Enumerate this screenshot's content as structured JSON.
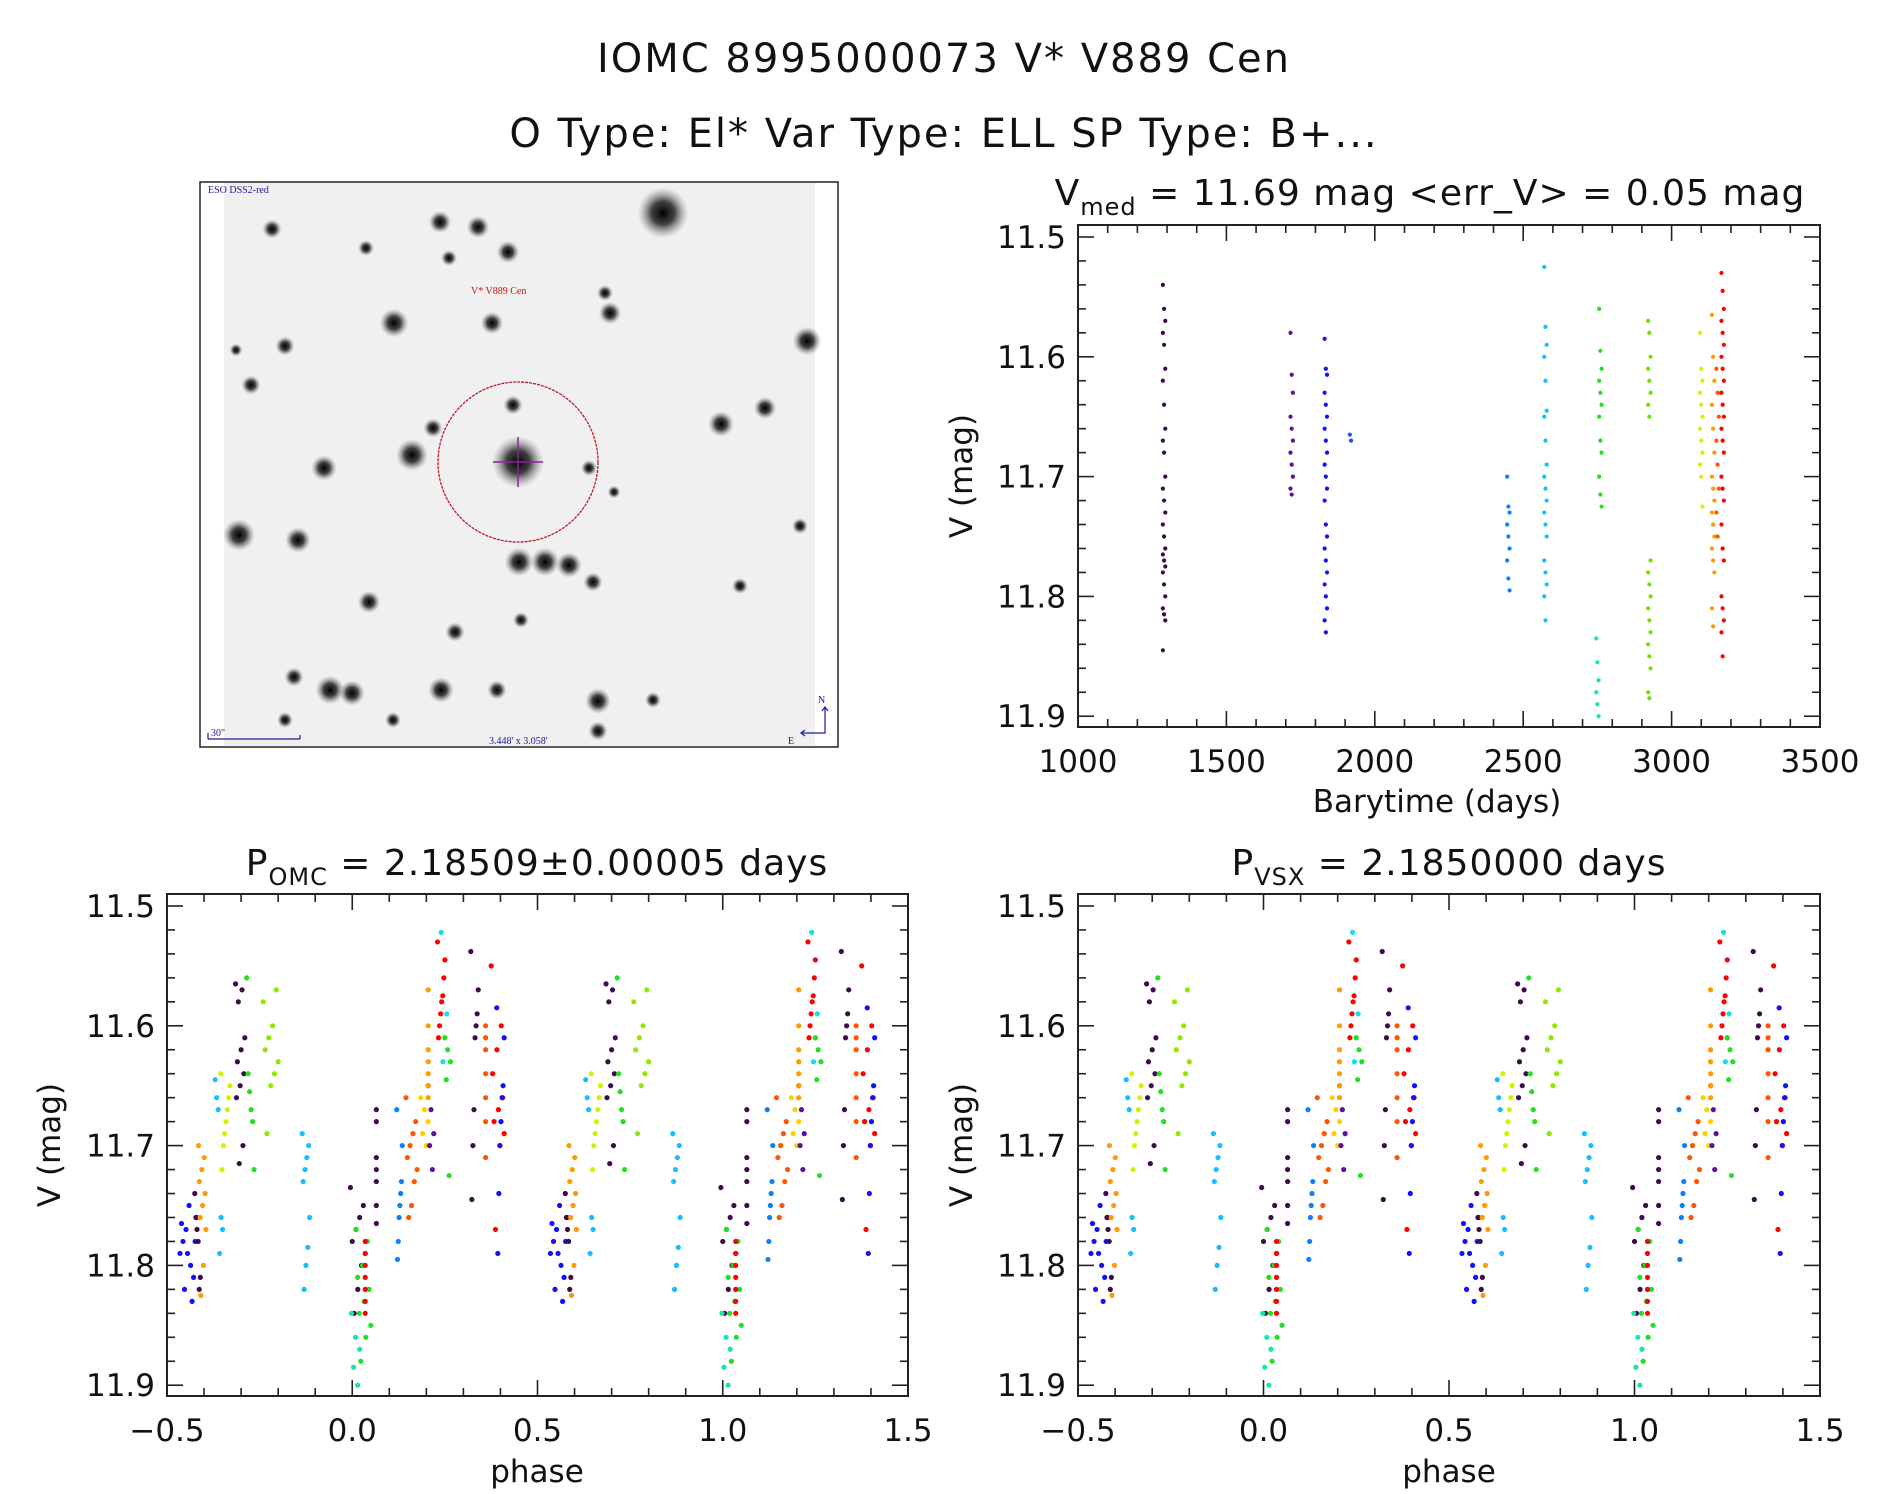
{
  "header": {
    "title_line1": "IOMC 8995000073    V* V889 Cen",
    "title_line2": "O Type: El*  Var Type: ELL  SP Type: B+..."
  },
  "finder_image": {
    "survey_label": "ESO DSS2-red",
    "target_label": "V* V889 Cen",
    "scale_label": "30\"",
    "fov_label": "3.448' x 3.058'",
    "north_label": "N",
    "east_label": "E",
    "colors": {
      "circle": "#c0182a",
      "cross": "#9020a0",
      "label": "#cc1010",
      "annot": "#1a1aa0"
    }
  },
  "chart_data": [
    {
      "id": "lightcurve",
      "type": "scatter",
      "title_main": "V",
      "title_sub": "med",
      "title_rest": " = 11.69 mag <err_V> = 0.05 mag",
      "xlabel": "Barytime (days)",
      "ylabel": "V (mag)",
      "xlim": [
        1000,
        3500
      ],
      "ylim": [
        11.909,
        11.49
      ],
      "xticks": [
        "1000",
        "1500",
        "2000",
        "2500",
        "3000",
        "3500"
      ],
      "yticks": [
        "11.5",
        "11.6",
        "11.7",
        "11.8",
        "11.9"
      ],
      "series": [
        {
          "t": 1290,
          "color": "#3d0a4a",
          "V": [
            11.54,
            11.56,
            11.57,
            11.58,
            11.59,
            11.61,
            11.62,
            11.64,
            11.66,
            11.67,
            11.68,
            11.7,
            11.71,
            11.72,
            11.73,
            11.74,
            11.75,
            11.76,
            11.765,
            11.77,
            11.775,
            11.78,
            11.79,
            11.8,
            11.81,
            11.815,
            11.82,
            11.845
          ]
        },
        {
          "t": 1720,
          "color": "#5a10a0",
          "V": [
            11.58,
            11.615,
            11.63,
            11.65,
            11.66,
            11.67,
            11.68,
            11.69,
            11.7,
            11.71,
            11.715
          ]
        },
        {
          "t": 1835,
          "color": "#1010ff",
          "V": [
            11.585,
            11.61,
            11.615,
            11.63,
            11.64,
            11.65,
            11.66,
            11.67,
            11.68,
            11.69,
            11.7,
            11.71,
            11.72,
            11.74,
            11.75,
            11.76,
            11.77,
            11.78,
            11.79,
            11.8,
            11.81,
            11.82,
            11.83
          ]
        },
        {
          "t": 1920,
          "color": "#2050ff",
          "V": [
            11.665,
            11.67
          ]
        },
        {
          "t": 2450,
          "color": "#0a80ff",
          "V": [
            11.7,
            11.725,
            11.73,
            11.74,
            11.75,
            11.76,
            11.77,
            11.785,
            11.795
          ]
        },
        {
          "t": 2575,
          "color": "#10c0ff",
          "V": [
            11.525,
            11.575,
            11.59,
            11.6,
            11.62,
            11.645,
            11.65,
            11.67,
            11.69,
            11.7,
            11.71,
            11.72,
            11.73,
            11.74,
            11.75,
            11.77,
            11.78,
            11.79,
            11.8,
            11.82
          ]
        },
        {
          "t": 2750,
          "color": "#10e8b0",
          "V": [
            11.835,
            11.855,
            11.87,
            11.88,
            11.89,
            11.9
          ]
        },
        {
          "t": 2760,
          "color": "#20e020",
          "V": [
            11.56,
            11.595,
            11.61,
            11.62,
            11.63,
            11.64,
            11.65,
            11.67,
            11.68,
            11.7,
            11.715,
            11.725
          ]
        },
        {
          "t": 2925,
          "color": "#70e000",
          "V": [
            11.57,
            11.58,
            11.6,
            11.61,
            11.62,
            11.63,
            11.64,
            11.65,
            11.77,
            11.78,
            11.79,
            11.8,
            11.81,
            11.82,
            11.83,
            11.84,
            11.85,
            11.86,
            11.88,
            11.885
          ]
        },
        {
          "t": 3100,
          "color": "#d8f000",
          "V": [
            11.58,
            11.61,
            11.62,
            11.63,
            11.64,
            11.65,
            11.66,
            11.67,
            11.68,
            11.69,
            11.7,
            11.725
          ]
        },
        {
          "t": 3140,
          "color": "#ff9a00",
          "V": [
            11.565,
            11.6,
            11.62,
            11.64,
            11.66,
            11.68,
            11.7,
            11.71,
            11.72,
            11.73,
            11.74,
            11.75,
            11.76,
            11.77,
            11.78,
            11.81,
            11.825
          ]
        },
        {
          "t": 3155,
          "color": "#ff5500",
          "V": [
            11.61,
            11.63,
            11.65,
            11.67,
            11.69,
            11.71,
            11.73,
            11.75
          ]
        },
        {
          "t": 3172,
          "color": "#ff0000",
          "V": [
            11.53,
            11.545,
            11.56,
            11.57,
            11.58,
            11.59,
            11.6,
            11.61,
            11.62,
            11.63,
            11.64,
            11.65,
            11.66,
            11.67,
            11.68,
            11.7,
            11.71,
            11.72,
            11.74,
            11.76,
            11.77,
            11.8,
            11.81,
            11.82,
            11.83,
            11.85
          ]
        }
      ]
    },
    {
      "id": "phase_omc",
      "type": "scatter",
      "title_main": "P",
      "title_sub": "OMC",
      "title_rest": " = 2.18509±0.00005 days",
      "xlabel": "phase",
      "ylabel": "V (mag)",
      "xlim": [
        -0.5,
        1.5
      ],
      "ylim": [
        11.909,
        11.49
      ],
      "xticks": [
        "−0.5",
        "0.0",
        "0.5",
        "1.0",
        "1.5"
      ],
      "yticks": [
        "11.5",
        "11.6",
        "11.7",
        "11.8",
        "11.9"
      ],
      "phase_shift": 0,
      "note_repeat": "points plotted at phase and phase+1"
    },
    {
      "id": "phase_vsx",
      "type": "scatter",
      "title_main": "P",
      "title_sub": "VSX",
      "title_rest": " = 2.1850000 days",
      "xlabel": "phase",
      "ylabel": "V (mag)",
      "xlim": [
        -0.5,
        1.5
      ],
      "ylim": [
        11.909,
        11.49
      ],
      "xticks": [
        "−0.5",
        "0.0",
        "0.5",
        "1.0",
        "1.5"
      ],
      "yticks": [
        "11.5",
        "11.6",
        "11.7",
        "11.8",
        "11.9"
      ],
      "phase_shift": 0.0
    }
  ],
  "phase_clusters": [
    {
      "color": "#1010ff",
      "phase": [
        -0.465,
        -0.42
      ],
      "V": [
        11.79,
        11.8,
        11.78,
        11.81,
        11.77,
        11.76,
        11.75,
        11.765,
        11.83,
        11.82,
        11.78,
        11.79
      ]
    },
    {
      "color": "#3d0a4a",
      "phase": [
        -0.425,
        -0.41
      ],
      "V": [
        11.74,
        11.76,
        11.77,
        11.78,
        11.82,
        11.81
      ]
    },
    {
      "color": "#ff9a00",
      "phase": [
        -0.415,
        -0.395
      ],
      "V": [
        11.7,
        11.71,
        11.72,
        11.73,
        11.74,
        11.75,
        11.76,
        11.77,
        11.8,
        11.825
      ]
    },
    {
      "color": "#10c0ff",
      "phase": [
        -0.37,
        -0.35
      ],
      "V": [
        11.645,
        11.66,
        11.67,
        11.79,
        11.76,
        11.77
      ]
    },
    {
      "color": "#d8f000",
      "phase": [
        -0.355,
        -0.33
      ],
      "V": [
        11.64,
        11.65,
        11.66,
        11.67,
        11.68,
        11.69,
        11.7,
        11.72
      ]
    },
    {
      "color": "#3d0a4a",
      "phase": [
        -0.315,
        -0.29
      ],
      "V": [
        11.565,
        11.57,
        11.58,
        11.61,
        11.62,
        11.63,
        11.64,
        11.65,
        11.66,
        11.7,
        11.715
      ]
    },
    {
      "color": "#20e020",
      "phase": [
        -0.285,
        -0.265
      ],
      "V": [
        11.56,
        11.64,
        11.655,
        11.67,
        11.68,
        11.72
      ]
    },
    {
      "color": "#90e800",
      "phase": [
        -0.24,
        -0.2
      ],
      "V": [
        11.58,
        11.57,
        11.6,
        11.61,
        11.62,
        11.63,
        11.64,
        11.65,
        11.69
      ]
    },
    {
      "color": "#10c0ff",
      "phase": [
        -0.135,
        -0.115
      ],
      "V": [
        11.69,
        11.7,
        11.71,
        11.72,
        11.73,
        11.76,
        11.785,
        11.8,
        11.82
      ]
    },
    {
      "color": "#3d0a4a",
      "phase": [
        -0.005,
        0.035
      ],
      "V": [
        11.735,
        11.75,
        11.76,
        11.77,
        11.78,
        11.79,
        11.8,
        11.82,
        11.84
      ]
    },
    {
      "color": "#10e8b0",
      "phase": [
        -0.002,
        0.02
      ],
      "V": [
        11.84,
        11.86,
        11.87,
        11.885,
        11.9
      ]
    },
    {
      "color": "#20e020",
      "phase": [
        0.01,
        0.05
      ],
      "V": [
        11.77,
        11.78,
        11.8,
        11.81,
        11.82,
        11.83,
        11.84,
        11.85,
        11.86,
        11.88
      ]
    },
    {
      "color": "#ff0000",
      "phase": [
        0.035,
        0.05
      ],
      "V": [
        11.78,
        11.79,
        11.8,
        11.81,
        11.82,
        11.83,
        11.84
      ]
    },
    {
      "color": "#3d0a4a",
      "phase": [
        0.065,
        0.085
      ],
      "V": [
        11.67,
        11.68,
        11.71,
        11.72,
        11.73,
        11.75,
        11.765
      ]
    },
    {
      "color": "#0a80ff",
      "phase": [
        0.12,
        0.135
      ],
      "V": [
        11.67,
        11.7,
        11.73,
        11.74,
        11.75,
        11.76,
        11.78,
        11.795
      ]
    },
    {
      "color": "#ff5500",
      "phase": [
        0.145,
        0.175
      ],
      "V": [
        11.66,
        11.68,
        11.69,
        11.7,
        11.71,
        11.72,
        11.73,
        11.75,
        11.76
      ]
    },
    {
      "color": "#ffd000",
      "phase": [
        0.185,
        0.205
      ],
      "V": [
        11.66,
        11.67,
        11.68,
        11.69,
        11.7
      ]
    },
    {
      "color": "#5a10a0",
      "phase": [
        0.205,
        0.22
      ],
      "V": [
        11.65,
        11.67,
        11.69,
        11.7,
        11.72
      ]
    },
    {
      "color": "#ff9a00",
      "phase": [
        0.205,
        0.235
      ],
      "V": [
        11.57,
        11.6,
        11.62,
        11.63,
        11.64,
        11.65,
        11.66
      ]
    },
    {
      "color": "#ff0000",
      "phase": [
        0.23,
        0.25
      ],
      "V": [
        11.53,
        11.545,
        11.56,
        11.575,
        11.58,
        11.59,
        11.6,
        11.61
      ]
    },
    {
      "color": "#10e0f0",
      "phase": [
        0.24,
        0.255
      ],
      "V": [
        11.522,
        11.59,
        11.61,
        11.63
      ]
    },
    {
      "color": "#20e020",
      "phase": [
        0.25,
        0.265
      ],
      "V": [
        11.61,
        11.62,
        11.63,
        11.645,
        11.725
      ]
    },
    {
      "color": "#3d0a4a",
      "phase": [
        0.32,
        0.34
      ],
      "V": [
        11.538,
        11.57,
        11.59,
        11.6,
        11.61,
        11.67,
        11.7,
        11.745
      ]
    },
    {
      "color": "#ff5500",
      "phase": [
        0.36,
        0.38
      ],
      "V": [
        11.6,
        11.61,
        11.62,
        11.64,
        11.66,
        11.68,
        11.71
      ]
    },
    {
      "color": "#ff0000",
      "phase": [
        0.375,
        0.41
      ],
      "V": [
        11.55,
        11.6,
        11.62,
        11.64,
        11.66,
        11.67,
        11.68,
        11.69,
        11.7,
        11.77
      ]
    },
    {
      "color": "#1010ff",
      "phase": [
        0.39,
        0.41
      ],
      "V": [
        11.585,
        11.61,
        11.65,
        11.66,
        11.68,
        11.7,
        11.74,
        11.79
      ]
    }
  ]
}
